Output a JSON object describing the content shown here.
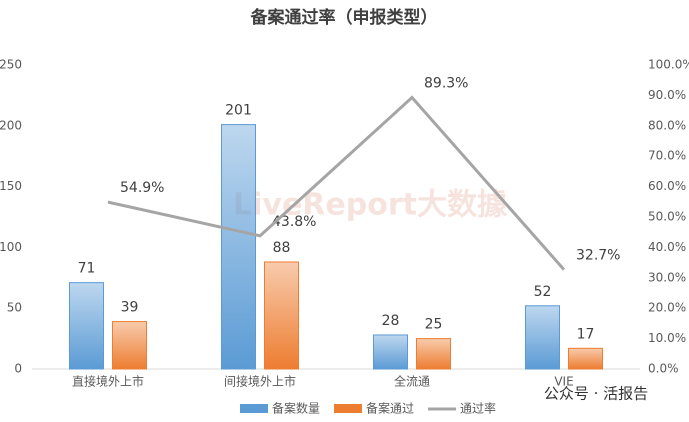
{
  "chart_data": {
    "type": "bar",
    "title": "备案通过率（申报类型）",
    "categories": [
      "直接境外上市",
      "间接境外上市",
      "全流通",
      "VIE"
    ],
    "series": [
      {
        "name": "备案数量",
        "color": "#5b9bd5",
        "values": [
          71,
          201,
          28,
          52
        ]
      },
      {
        "name": "备案通过",
        "color": "#ed7d31",
        "values": [
          39,
          88,
          25,
          17
        ]
      },
      {
        "name": "通过率",
        "type": "line",
        "axis": "y2",
        "color": "#a5a5a5",
        "values": [
          54.9,
          43.8,
          89.3,
          32.7
        ],
        "value_labels": [
          "54.9%",
          "43.8%",
          "89.3%",
          "32.7%"
        ]
      }
    ],
    "ylim": [
      0,
      250
    ],
    "yticks": [
      0,
      50,
      100,
      150,
      200,
      250
    ],
    "y2lim": [
      0,
      100
    ],
    "y2ticks": [
      {
        "value": 0,
        "label": "0.0%"
      },
      {
        "value": 10,
        "label": "10.0%"
      },
      {
        "value": 20,
        "label": "20.0%"
      },
      {
        "value": 30,
        "label": "30.0%"
      },
      {
        "value": 40,
        "label": "40.0%"
      },
      {
        "value": 50,
        "label": "50.0%"
      },
      {
        "value": 60,
        "label": "60.0%"
      },
      {
        "value": 70,
        "label": "70.0%"
      },
      {
        "value": 80,
        "label": "80.0%"
      },
      {
        "value": 90,
        "label": "90.0%"
      },
      {
        "value": 100,
        "label": "100.0%"
      }
    ],
    "grid": false,
    "legend": "bottom",
    "watermark": "LiveReport大数據",
    "source_note": "公众号 · 活报告"
  }
}
